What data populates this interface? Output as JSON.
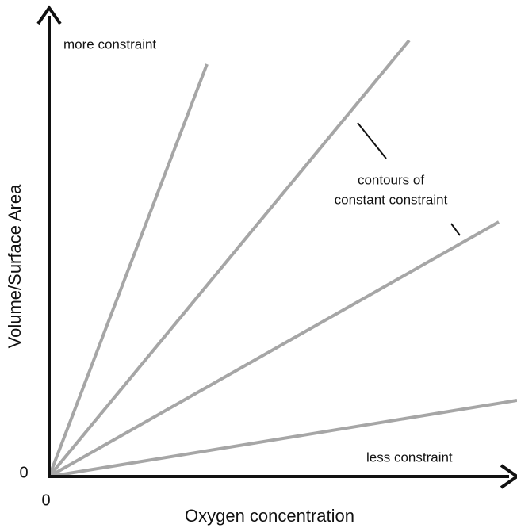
{
  "y_axis": {
    "label": "Volume/Surface Area",
    "origin": "0"
  },
  "x_axis": {
    "label": "Oxygen concentration",
    "origin": "0"
  },
  "annotations": {
    "top": "more constraint",
    "contours": [
      "contours of",
      "constant constraint"
    ],
    "bottom": "less constraint"
  }
}
